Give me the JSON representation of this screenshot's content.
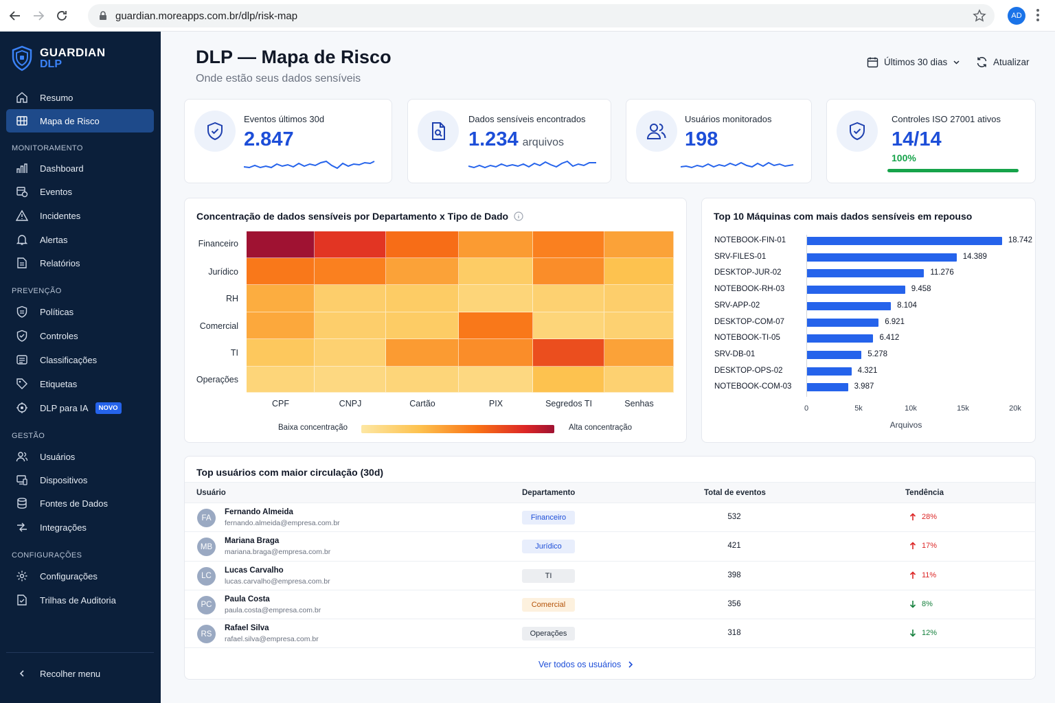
{
  "browser": {
    "url": "guardian.moreapps.com.br/dlp/risk-map",
    "profile_initials": "AD"
  },
  "brand": {
    "line1": "GUARDIAN",
    "line2": "DLP"
  },
  "sidebar": {
    "top_items": [
      {
        "label": "Resumo",
        "icon": "home-icon"
      },
      {
        "label": "Mapa de Risco",
        "icon": "grid-map-icon",
        "active": true
      }
    ],
    "sections": [
      {
        "title": "MONITORAMENTO",
        "items": [
          {
            "label": "Dashboard",
            "icon": "bar-chart-icon"
          },
          {
            "label": "Eventos",
            "icon": "events-icon"
          },
          {
            "label": "Incidentes",
            "icon": "warning-icon"
          },
          {
            "label": "Alertas",
            "icon": "bell-icon"
          },
          {
            "label": "Relatórios",
            "icon": "report-icon"
          }
        ]
      },
      {
        "title": "PREVENÇÃO",
        "items": [
          {
            "label": "Políticas",
            "icon": "policy-icon"
          },
          {
            "label": "Controles",
            "icon": "shield-check-icon"
          },
          {
            "label": "Classificações",
            "icon": "classification-icon"
          },
          {
            "label": "Etiquetas",
            "icon": "tag-icon"
          },
          {
            "label": "DLP para IA",
            "icon": "ai-shield-icon",
            "badge": "NOVO"
          }
        ]
      },
      {
        "title": "GESTÃO",
        "items": [
          {
            "label": "Usuários",
            "icon": "users-icon"
          },
          {
            "label": "Dispositivos",
            "icon": "devices-icon"
          },
          {
            "label": "Fontes de Dados",
            "icon": "database-icon"
          },
          {
            "label": "Integrações",
            "icon": "integrations-icon"
          }
        ]
      },
      {
        "title": "CONFIGURAÇÕES",
        "items": [
          {
            "label": "Configurações",
            "icon": "gear-icon"
          },
          {
            "label": "Trilhas de Auditoria",
            "icon": "audit-icon"
          }
        ]
      }
    ],
    "collapse_label": "Recolher menu"
  },
  "header": {
    "title": "DLP — Mapa de Risco",
    "subtitle": "Onde estão seus dados sensíveis",
    "period": "Últimos 30 dias",
    "refresh": "Atualizar"
  },
  "kpis": [
    {
      "label": "Eventos últimos 30d",
      "value": "2.847",
      "icon": "shield-check-icon"
    },
    {
      "label": "Dados sensíveis encontrados",
      "value": "1.234",
      "unit": "arquivos",
      "icon": "file-search-icon"
    },
    {
      "label": "Usuários monitorados",
      "value": "198",
      "icon": "users-icon"
    },
    {
      "label": "Controles ISO 27001 ativos",
      "value": "14/14",
      "pct": "100%",
      "progress": 1.0,
      "icon": "shield-check-icon"
    }
  ],
  "heatmap": {
    "title": "Concentração de dados sensíveis por Departamento x Tipo de Dado",
    "legend_low": "Baixa concentração",
    "legend_high": "Alta concentração"
  },
  "barchart": {
    "title": "Top 10 Máquinas com mais dados sensíveis em repouso"
  },
  "chart_data": [
    {
      "type": "heatmap",
      "title": "Concentração de dados sensíveis por Departamento x Tipo de Dado",
      "rows": [
        "Financeiro",
        "Jurídico",
        "RH",
        "Comercial",
        "TI",
        "Operações"
      ],
      "columns": [
        "CPF",
        "CNPJ",
        "Cartão",
        "PIX",
        "Segredos TI",
        "Senhas"
      ],
      "values": [
        [
          1.0,
          0.8,
          0.62,
          0.45,
          0.55,
          0.42
        ],
        [
          0.58,
          0.55,
          0.42,
          0.22,
          0.5,
          0.3
        ],
        [
          0.38,
          0.2,
          0.22,
          0.15,
          0.18,
          0.2
        ],
        [
          0.4,
          0.2,
          0.22,
          0.58,
          0.15,
          0.18
        ],
        [
          0.25,
          0.18,
          0.45,
          0.5,
          0.72,
          0.42
        ],
        [
          0.15,
          0.12,
          0.15,
          0.12,
          0.3,
          0.18
        ]
      ],
      "legend": [
        "Baixa concentração",
        "Alta concentração"
      ]
    },
    {
      "type": "bar",
      "orientation": "horizontal",
      "title": "Top 10 Máquinas com mais dados sensíveis em repouso",
      "categories": [
        "NOTEBOOK-FIN-01",
        "SRV-FILES-01",
        "DESKTOP-JUR-02",
        "NOTEBOOK-RH-03",
        "SRV-APP-02",
        "DESKTOP-COM-07",
        "NOTEBOOK-TI-05",
        "SRV-DB-01",
        "DESKTOP-OPS-02",
        "NOTEBOOK-COM-03"
      ],
      "values": [
        18742,
        14389,
        11276,
        9458,
        8104,
        6921,
        6412,
        5278,
        4321,
        3987
      ],
      "value_labels": [
        "18.742",
        "14.389",
        "11.276",
        "9.458",
        "8.104",
        "6.921",
        "6.412",
        "5.278",
        "4.321",
        "3.987"
      ],
      "xlabel": "Arquivos",
      "xlim": [
        0,
        20000
      ],
      "ticks": [
        "0",
        "5k",
        "10k",
        "15k",
        "20k"
      ],
      "color": "#2563eb"
    }
  ],
  "table": {
    "title": "Top usuários com maior circulação (30d)",
    "headers": [
      "Usuário",
      "Departamento",
      "Total de eventos",
      "Tendência"
    ],
    "rows": [
      {
        "initials": "FA",
        "name": "Fernando Almeida",
        "email": "fernando.almeida@empresa.com.br",
        "dept": "Financeiro",
        "dept_bg": "#e8eefc",
        "dept_fg": "#1d4ed8",
        "total": "532",
        "trend": "28%",
        "dir": "up"
      },
      {
        "initials": "MB",
        "name": "Mariana Braga",
        "email": "mariana.braga@empresa.com.br",
        "dept": "Jurídico",
        "dept_bg": "#e8eefc",
        "dept_fg": "#1d4ed8",
        "total": "421",
        "trend": "17%",
        "dir": "up"
      },
      {
        "initials": "LC",
        "name": "Lucas Carvalho",
        "email": "lucas.carvalho@empresa.com.br",
        "dept": "TI",
        "dept_bg": "#eceef1",
        "dept_fg": "#1f2937",
        "total": "398",
        "trend": "11%",
        "dir": "up"
      },
      {
        "initials": "PC",
        "name": "Paula Costa",
        "email": "paula.costa@empresa.com.br",
        "dept": "Comercial",
        "dept_bg": "#fdf1de",
        "dept_fg": "#b45309",
        "total": "356",
        "trend": "8%",
        "dir": "down"
      },
      {
        "initials": "RS",
        "name": "Rafael Silva",
        "email": "rafael.silva@empresa.com.br",
        "dept": "Operações",
        "dept_bg": "#eceef1",
        "dept_fg": "#1f2937",
        "total": "318",
        "trend": "12%",
        "dir": "down"
      }
    ],
    "see_all": "Ver todos os usuários"
  }
}
